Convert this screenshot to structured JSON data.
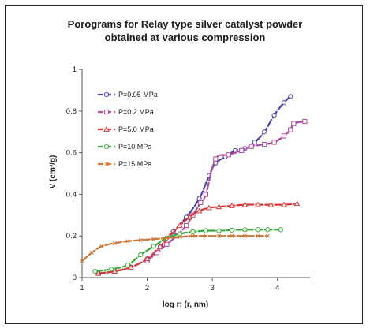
{
  "chart_data": {
    "type": "line",
    "title_line1": "Porograms for Relay type silver catalyst powder",
    "title_line2": "obtained at various  compression",
    "xlabel": "log r; (r, nm)",
    "ylabel": "V (cm³/g)",
    "xlim": [
      1,
      4.5
    ],
    "ylim": [
      0,
      1
    ],
    "xticks": [
      1,
      2,
      3,
      4
    ],
    "yticks": [
      0,
      0.2,
      0.4,
      0.6,
      0.8,
      1
    ],
    "ytick_labels": [
      "0",
      "0.2",
      "0.4",
      "0.6",
      "0.8",
      "1"
    ],
    "legend_position": "top-left",
    "grid": false,
    "series": [
      {
        "name": "P=0.05 MPa",
        "color": "#4a46a8",
        "marker": "circle-open",
        "x": [
          1.25,
          1.5,
          1.75,
          2.0,
          2.2,
          2.4,
          2.6,
          2.8,
          2.95,
          3.05,
          3.2,
          3.35,
          3.5,
          3.65,
          3.8,
          3.95,
          4.1,
          4.2
        ],
        "y": [
          0.02,
          0.03,
          0.05,
          0.09,
          0.15,
          0.22,
          0.29,
          0.38,
          0.49,
          0.55,
          0.58,
          0.61,
          0.62,
          0.65,
          0.7,
          0.78,
          0.84,
          0.87
        ]
      },
      {
        "name": "P=0.2 MPa",
        "color": "#b04a9a",
        "marker": "square-open",
        "x": [
          2.0,
          2.15,
          2.3,
          2.45,
          2.6,
          2.7,
          2.82,
          2.9,
          3.05,
          3.25,
          3.45,
          3.6,
          3.8,
          3.95,
          4.1,
          4.2,
          4.25,
          4.42
        ],
        "y": [
          0.08,
          0.12,
          0.16,
          0.2,
          0.25,
          0.3,
          0.36,
          0.4,
          0.57,
          0.59,
          0.61,
          0.63,
          0.64,
          0.65,
          0.68,
          0.71,
          0.74,
          0.75
        ]
      },
      {
        "name": "P=5.0 MPa",
        "color": "#d83a3a",
        "marker": "triangle-open",
        "x": [
          1.25,
          1.5,
          1.75,
          2.0,
          2.2,
          2.35,
          2.5,
          2.65,
          2.8,
          2.95,
          3.1,
          3.3,
          3.5,
          3.7,
          3.9,
          4.1,
          4.3
        ],
        "y": [
          0.02,
          0.03,
          0.05,
          0.09,
          0.15,
          0.2,
          0.25,
          0.29,
          0.32,
          0.335,
          0.34,
          0.345,
          0.35,
          0.35,
          0.35,
          0.35,
          0.355
        ]
      },
      {
        "name": "P=10 MPa",
        "color": "#3aa83a",
        "marker": "circle-open",
        "x": [
          1.2,
          1.45,
          1.7,
          1.9,
          2.1,
          2.3,
          2.5,
          2.7,
          2.9,
          3.1,
          3.3,
          3.5,
          3.7,
          3.85,
          4.05
        ],
        "y": [
          0.03,
          0.04,
          0.06,
          0.11,
          0.15,
          0.19,
          0.21,
          0.22,
          0.225,
          0.225,
          0.228,
          0.23,
          0.23,
          0.23,
          0.23
        ]
      },
      {
        "name": "P=15 MPa",
        "color": "#c8783a",
        "marker": "cross",
        "x": [
          1.0,
          1.15,
          1.3,
          1.5,
          1.7,
          1.9,
          2.1,
          2.3,
          2.5,
          2.7,
          2.9,
          3.1,
          3.3,
          3.5,
          3.7,
          3.85
        ],
        "y": [
          0.08,
          0.12,
          0.15,
          0.165,
          0.175,
          0.18,
          0.185,
          0.19,
          0.195,
          0.2,
          0.2,
          0.2,
          0.2,
          0.2,
          0.2,
          0.2
        ]
      }
    ]
  }
}
